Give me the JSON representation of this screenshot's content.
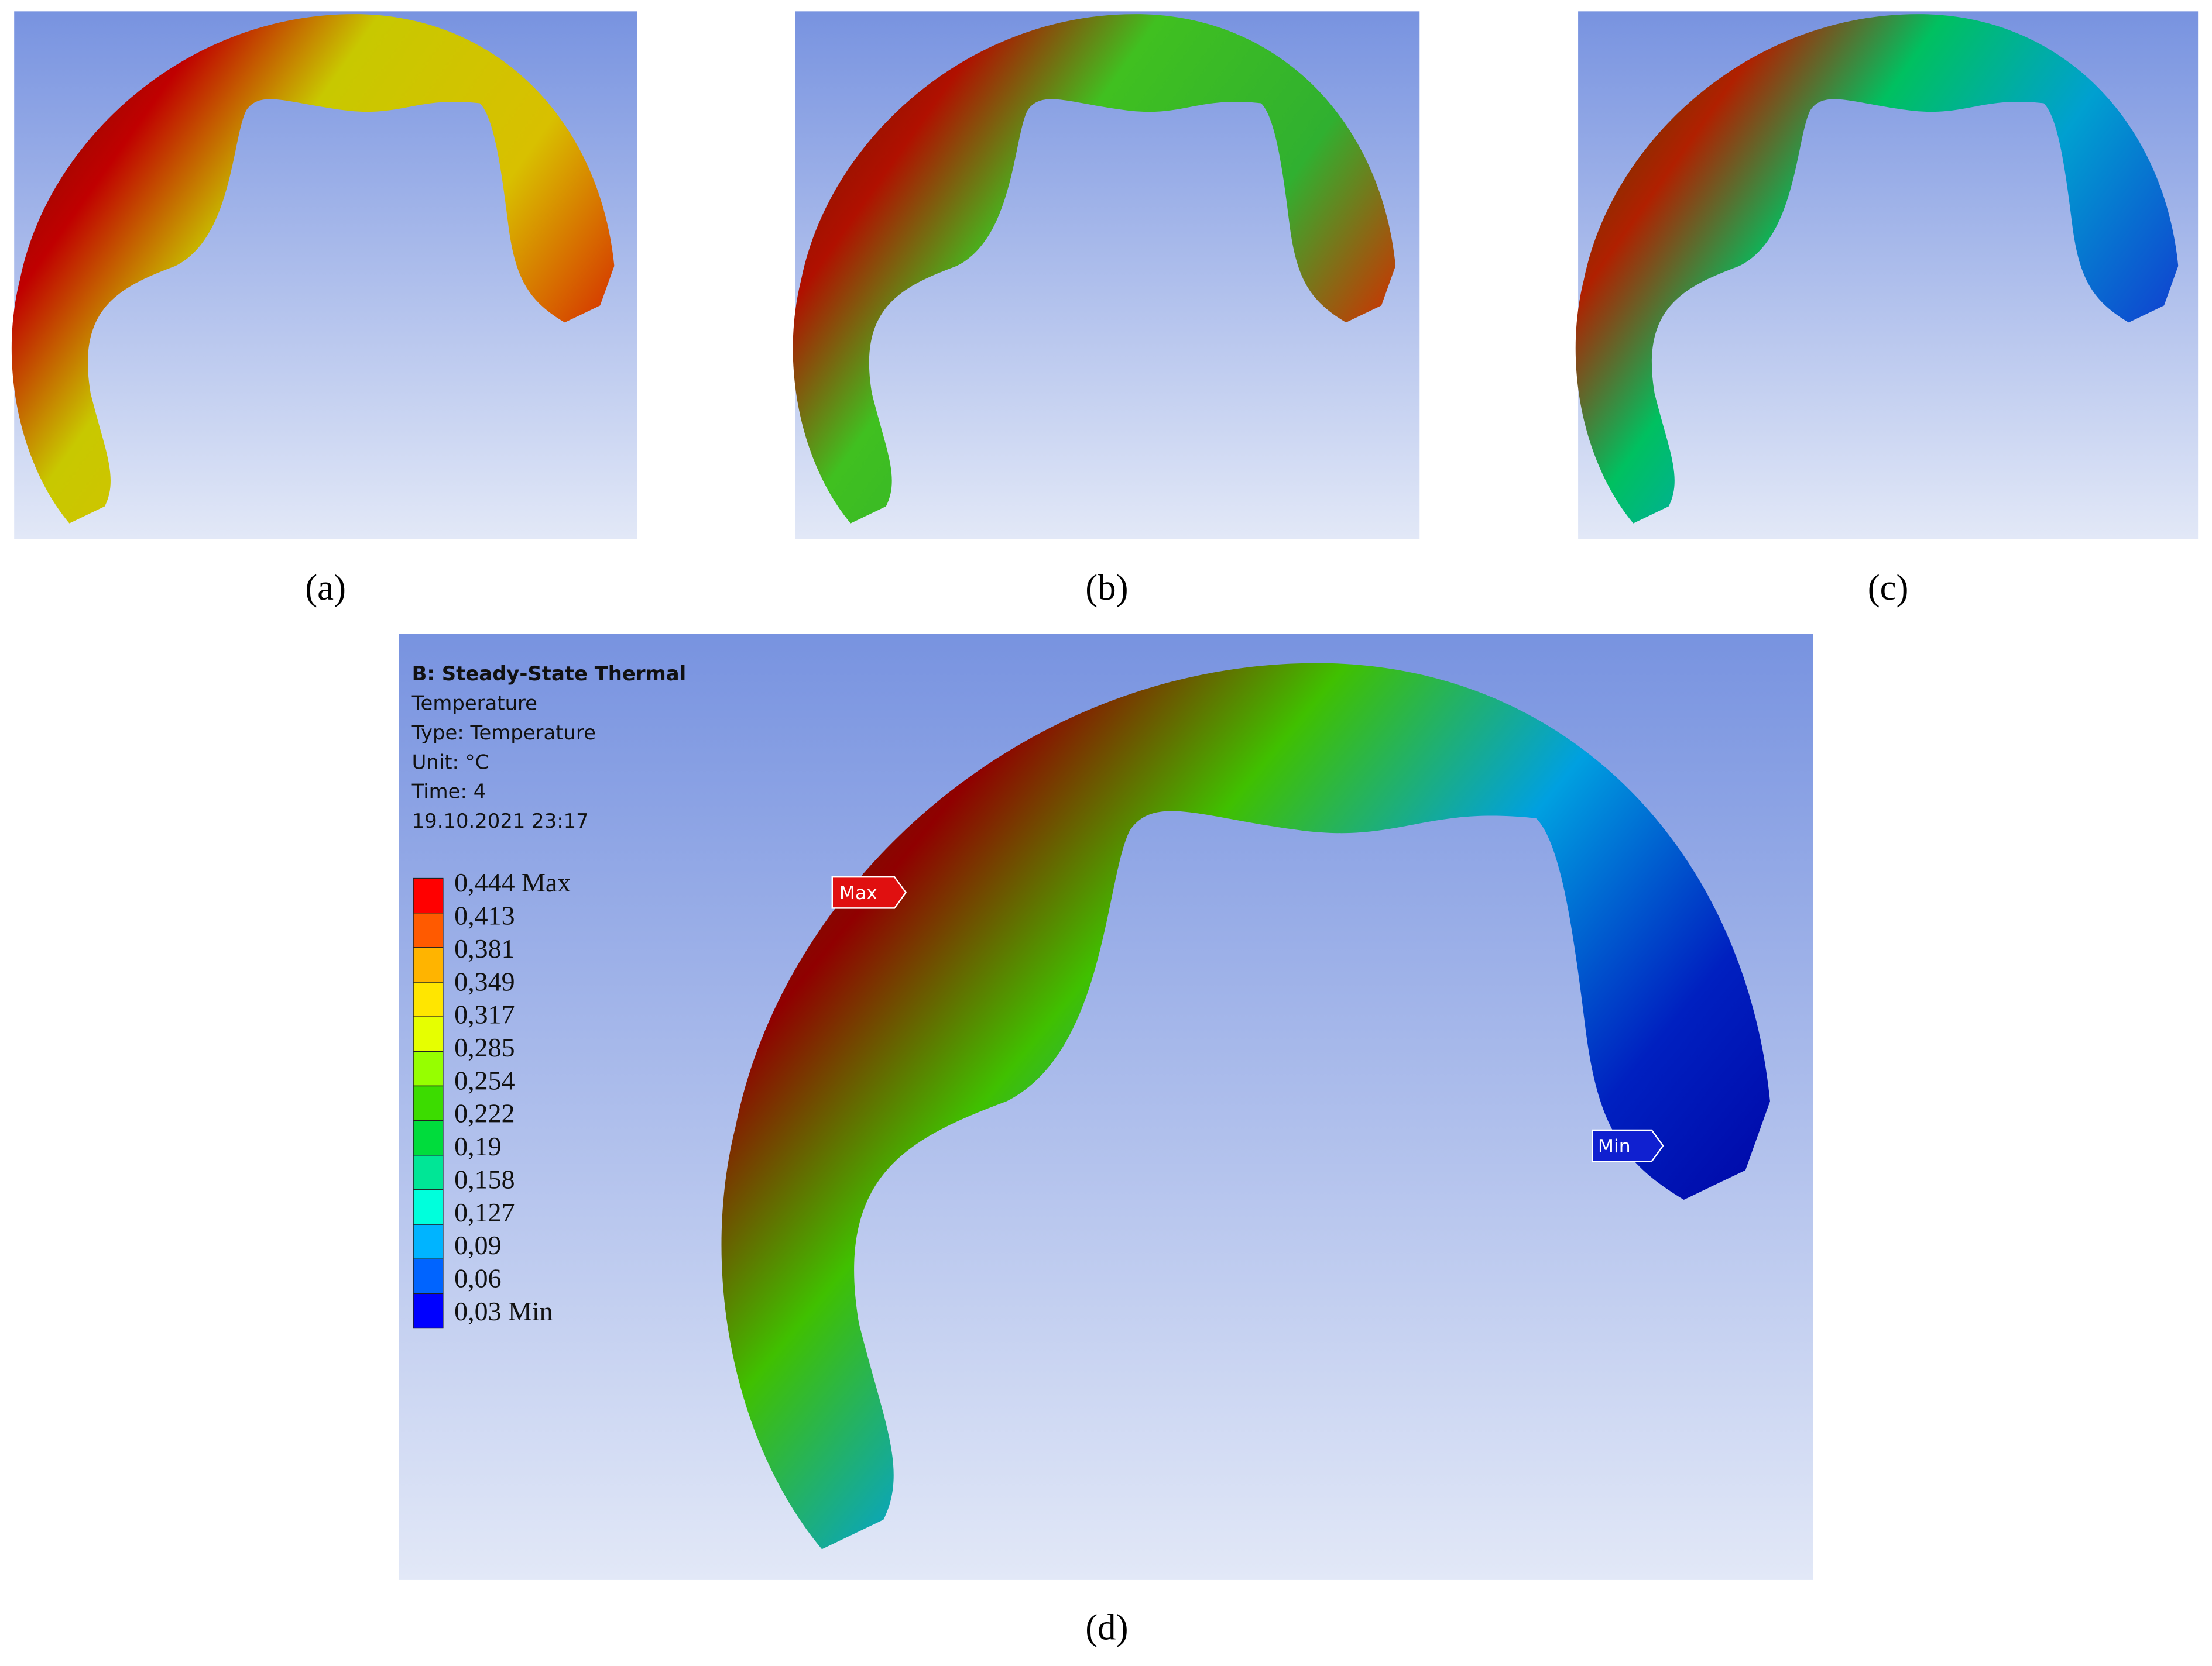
{
  "captions": [
    "(a)",
    "(b)",
    "(c)",
    "(d)"
  ],
  "info": {
    "title": "B: Steady-State Thermal",
    "lines": [
      "Temperature",
      "Type: Temperature",
      "Unit: °C",
      "Time: 4",
      "19.10.2021 23:17"
    ]
  },
  "legend": {
    "labels": [
      "0,444 Max",
      "0,413",
      "0,381",
      "0,349",
      "0,317",
      "0,285",
      "0,254",
      "0,222",
      "0,19",
      "0,158",
      "0,127",
      "0,09",
      "0,06",
      "0,03 Min"
    ],
    "colors": [
      "#ff0000",
      "#ff5a00",
      "#ffb400",
      "#ffe600",
      "#e6ff00",
      "#96ff00",
      "#3cdc00",
      "#00dc3c",
      "#00e696",
      "#00ffdc",
      "#00b4ff",
      "#0064ff",
      "#0000ff"
    ]
  },
  "markers": {
    "max": "Max",
    "min": "Min"
  }
}
